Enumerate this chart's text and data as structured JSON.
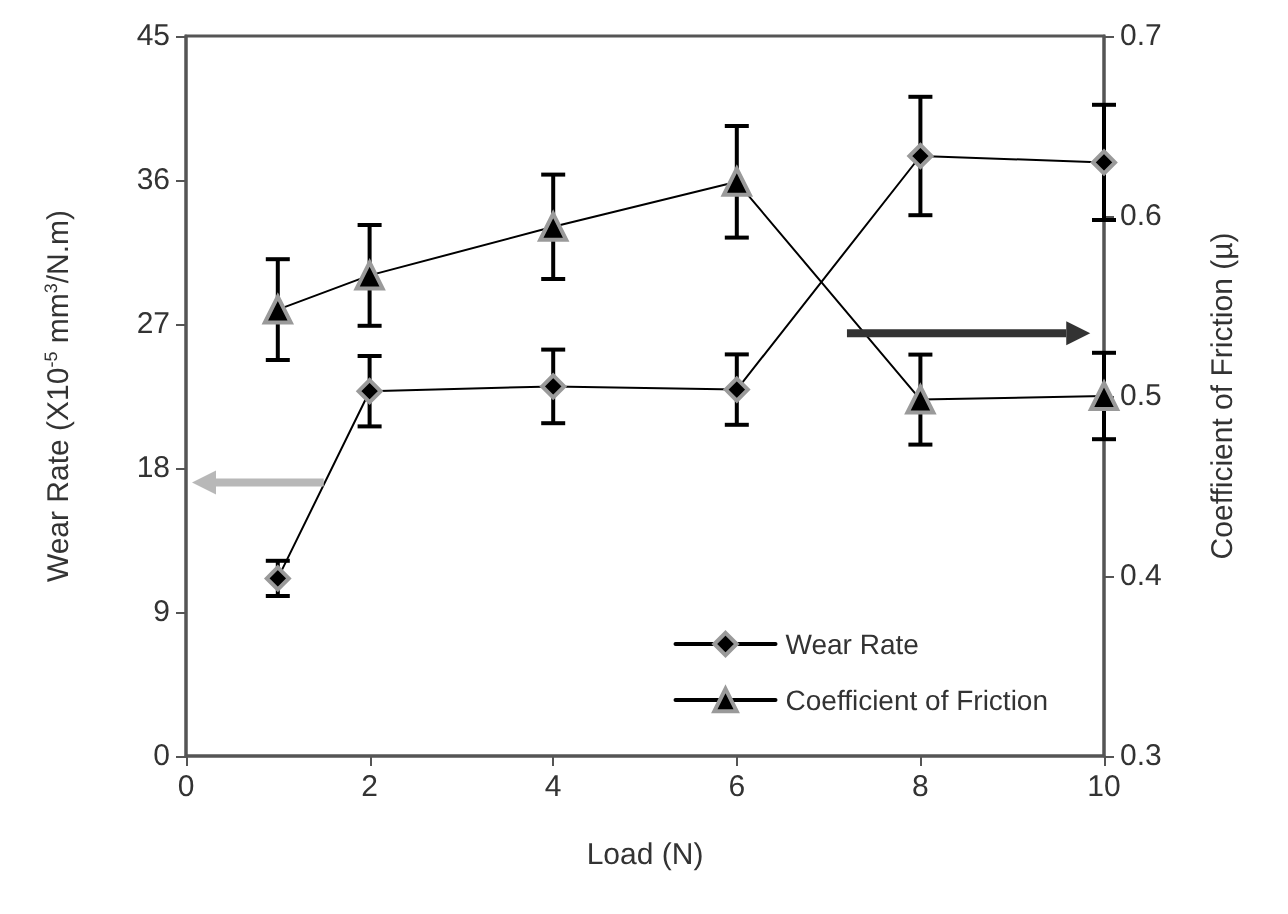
{
  "chart_data": {
    "type": "line",
    "xlabel": "Load (N)",
    "ylabel": "Wear Rate (X10$^{-5}$ mm$^{3}$/N.m)",
    "y2label": "Coefficient of Friction (µ)",
    "x": [
      1,
      2,
      4,
      6,
      8,
      10
    ],
    "series": [
      {
        "name": "Wear Rate",
        "color": "#000000",
        "marker": "diamond",
        "values": [
          11.1,
          22.8,
          23.1,
          22.9,
          37.5,
          37.1
        ],
        "errors": [
          1.1,
          2.2,
          2.3,
          2.2,
          3.7,
          3.6
        ]
      },
      {
        "name": "Coefficient of Friction",
        "color": "#000000",
        "marker": "triangle",
        "axis": "y2",
        "values": [
          0.548,
          0.567,
          0.594,
          0.619,
          0.498,
          0.5
        ],
        "errors": [
          0.028,
          0.028,
          0.029,
          0.031,
          0.025,
          0.024
        ]
      }
    ],
    "xlim": [
      0,
      10
    ],
    "xticks": [
      0,
      2,
      4,
      6,
      8,
      10
    ],
    "ylim": [
      0,
      45
    ],
    "yticks": [
      0,
      9,
      18,
      27,
      36,
      45
    ],
    "y2lim": [
      0.3,
      0.7
    ],
    "y2ticks": [
      0.3,
      0.4,
      0.5,
      0.6,
      0.7
    ],
    "grid": false,
    "legend": "bottom right",
    "line_style": "solid"
  }
}
